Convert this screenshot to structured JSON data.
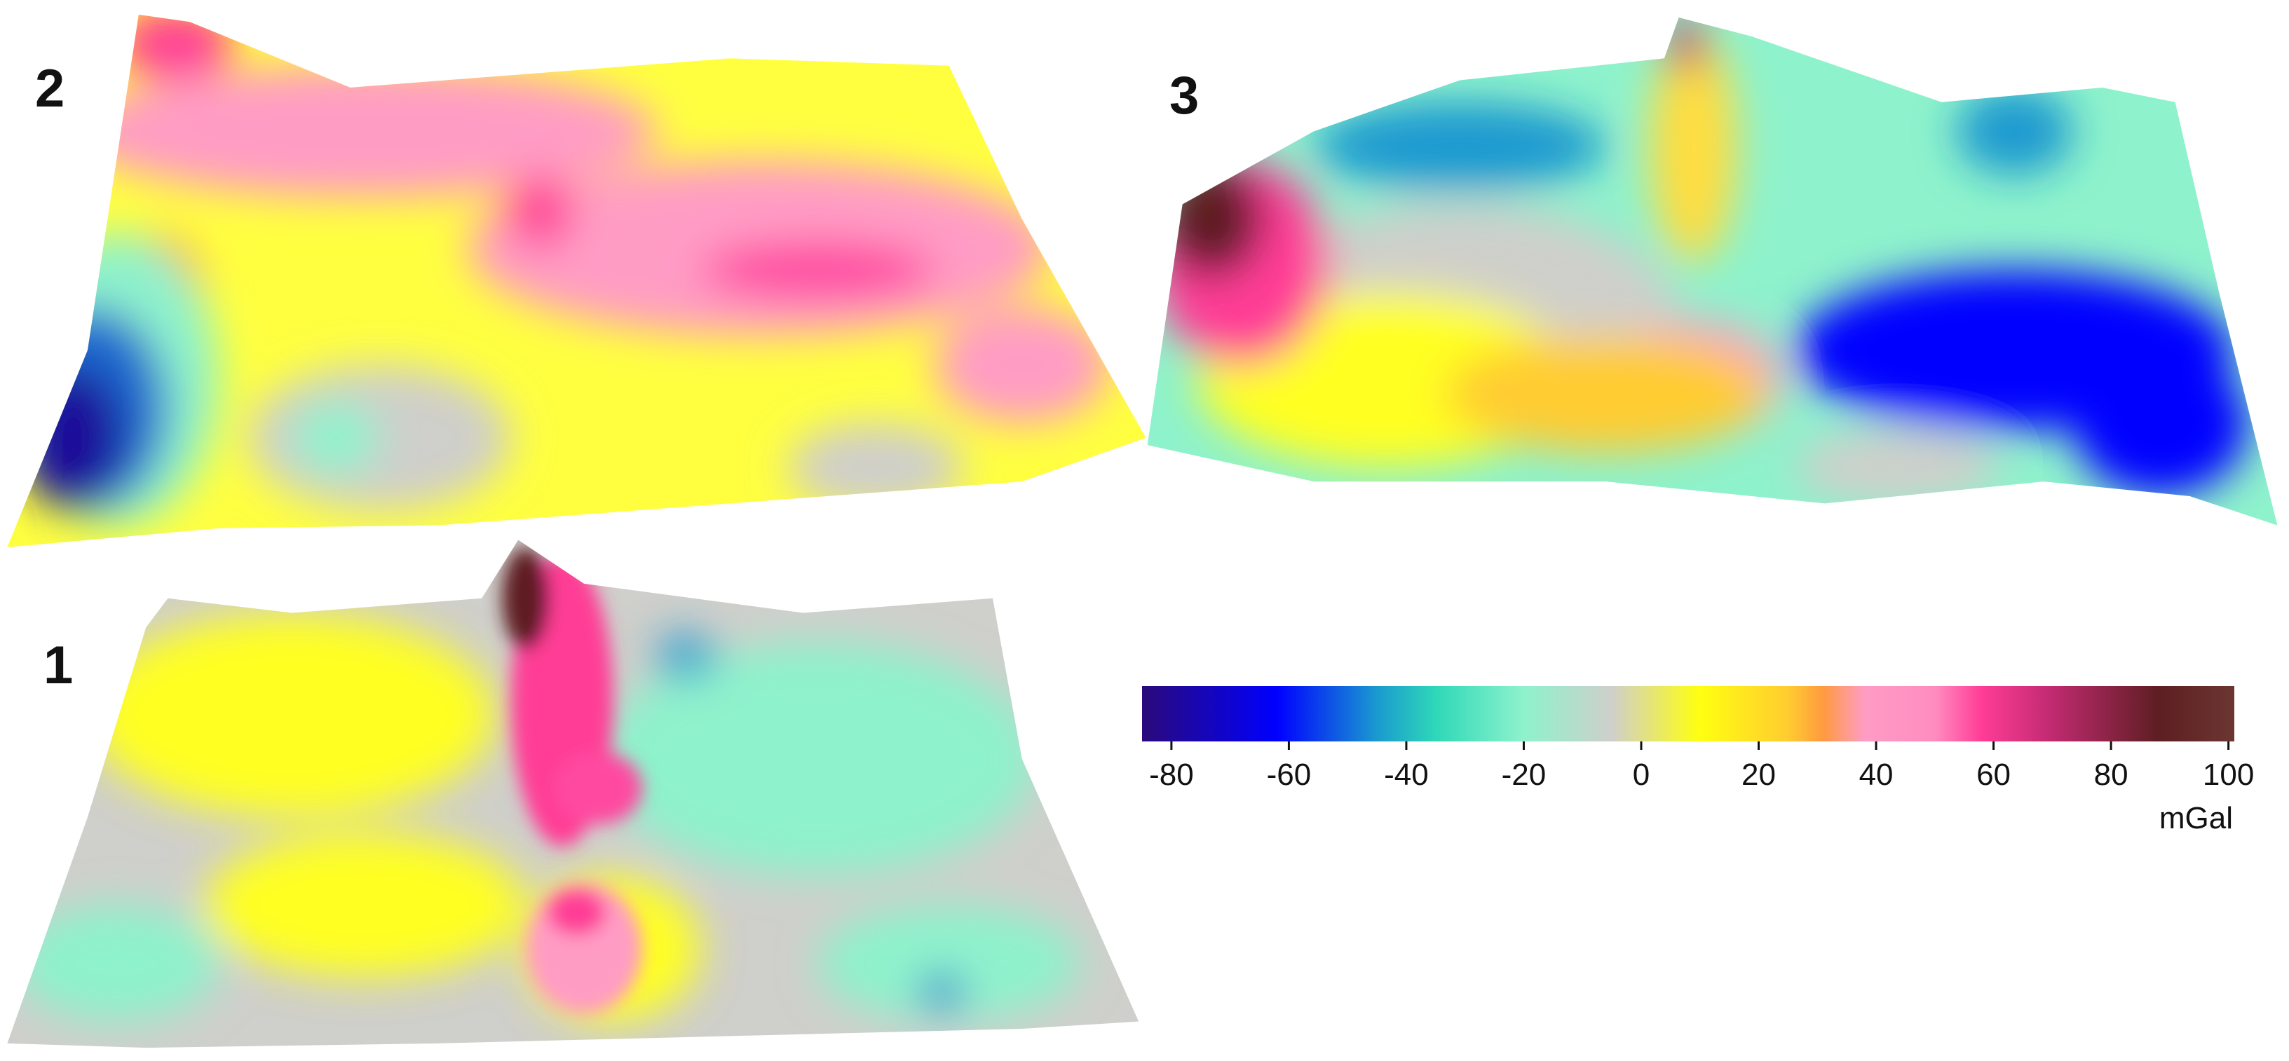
{
  "chart_data": {
    "type": "colorbar",
    "panel_labels": [
      "2",
      "3",
      "1"
    ],
    "unit": "mGal",
    "clim": [
      -85,
      101
    ],
    "ticks": [
      -80,
      -60,
      -40,
      -20,
      0,
      20,
      40,
      60,
      80,
      100
    ],
    "colormap": [
      {
        "value": -85,
        "color": "#2a0a7a"
      },
      {
        "value": -62,
        "color": "#0000ff"
      },
      {
        "value": -45,
        "color": "#1a9ad0"
      },
      {
        "value": -35,
        "color": "#2ed8b8"
      },
      {
        "value": -20,
        "color": "#8ef2cc"
      },
      {
        "value": -5,
        "color": "#cfcfcb"
      },
      {
        "value": 10,
        "color": "#ffff10"
      },
      {
        "value": 25,
        "color": "#ffcc30"
      },
      {
        "value": 31,
        "color": "#ff9a40"
      },
      {
        "value": 38,
        "color": "#ff9cc4"
      },
      {
        "value": 50,
        "color": "#ff8cc0"
      },
      {
        "value": 58,
        "color": "#ff3c96"
      },
      {
        "value": 70,
        "color": "#c02a70"
      },
      {
        "value": 88,
        "color": "#5e1e22"
      },
      {
        "value": 101,
        "color": "#6b3632"
      }
    ]
  }
}
